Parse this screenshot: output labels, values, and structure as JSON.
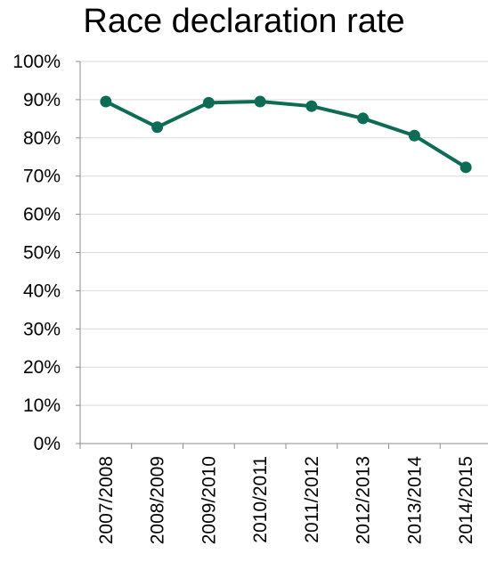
{
  "chart_data": {
    "type": "line",
    "title": "Race declaration rate",
    "xlabel": "",
    "ylabel": "",
    "categories": [
      "2007/2008",
      "2008/2009",
      "2009/2010",
      "2010/2011",
      "2011/2012",
      "2012/2013",
      "2013/2014",
      "2014/2015"
    ],
    "series": [
      {
        "values": [
          89.5,
          82.8,
          89.2,
          89.5,
          88.3,
          85.1,
          80.6,
          72.3
        ]
      }
    ],
    "ylim": [
      0,
      100
    ],
    "yticks": [
      "0%",
      "10%",
      "20%",
      "30%",
      "40%",
      "50%",
      "60%",
      "70%",
      "80%",
      "90%",
      "100%"
    ],
    "grid": "horizontal",
    "legend": "none",
    "colors": {
      "series": "#0e6b55",
      "grid": "#d9d9d9",
      "axis": "#8c8c8c"
    }
  }
}
